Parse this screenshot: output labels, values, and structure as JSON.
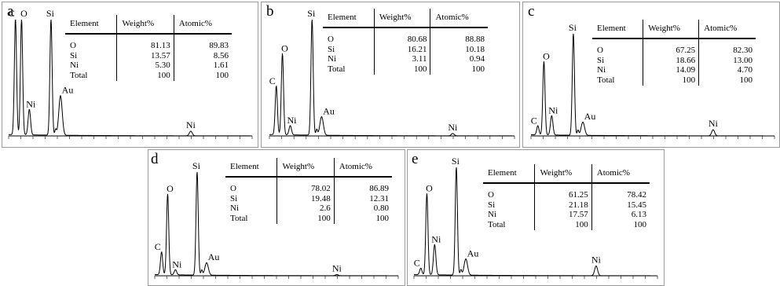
{
  "chart_data": [
    {
      "type": "line",
      "label": "a",
      "x": [
        0.28,
        0.53,
        0.85,
        1.74,
        2.13,
        7.48
      ],
      "y": [
        100,
        100,
        22,
        100,
        34,
        4
      ],
      "peaks": [
        "C",
        "O",
        "Ni",
        "Si",
        "Au",
        "Ni"
      ],
      "table": {
        "headers": [
          "Element",
          "Weight%",
          "Atomic%"
        ],
        "rows": [
          [
            "O",
            "81.13",
            "89.83"
          ],
          [
            "Si",
            "13.57",
            "8.56"
          ],
          [
            "Ni",
            "5.30",
            "1.61"
          ],
          [
            "Total",
            "100",
            "100"
          ]
        ]
      }
    },
    {
      "type": "line",
      "label": "b",
      "x": [
        0.28,
        0.53,
        0.85,
        1.74,
        2.13,
        7.48
      ],
      "y": [
        42,
        70,
        8,
        100,
        16,
        2
      ],
      "peaks": [
        "C",
        "O",
        "Ni",
        "Si",
        "Au",
        "Ni"
      ],
      "table": {
        "headers": [
          "Element",
          "Weight%",
          "Atomic%"
        ],
        "rows": [
          [
            "O",
            "80.68",
            "88.88"
          ],
          [
            "Si",
            "16.21",
            "10.18"
          ],
          [
            "Ni",
            "3.11",
            "0.94"
          ],
          [
            "Total",
            "100",
            "100"
          ]
        ]
      }
    },
    {
      "type": "line",
      "label": "c",
      "x": [
        0.28,
        0.53,
        0.85,
        1.74,
        2.13,
        7.48
      ],
      "y": [
        9,
        72,
        19,
        100,
        13,
        6
      ],
      "peaks": [
        "C",
        "O",
        "Ni",
        "Si",
        "Au",
        "Ni"
      ],
      "table": {
        "headers": [
          "Element",
          "Weight%",
          "Atomic%"
        ],
        "rows": [
          [
            "O",
            "67.25",
            "82.30"
          ],
          [
            "Si",
            "18.66",
            "13.00"
          ],
          [
            "Ni",
            "14.09",
            "4.70"
          ],
          [
            "Total",
            "100",
            "100"
          ]
        ]
      }
    },
    {
      "type": "line",
      "label": "d",
      "x": [
        0.28,
        0.53,
        0.85,
        1.74,
        2.13,
        7.48
      ],
      "y": [
        22,
        78,
        5,
        100,
        12,
        1
      ],
      "peaks": [
        "C",
        "O",
        "Ni",
        "Si",
        "Au",
        "Ni"
      ],
      "table": {
        "headers": [
          "Element",
          "Weight%",
          "Atomic%"
        ],
        "rows": [
          [
            "O",
            "78.02",
            "86.89"
          ],
          [
            "Si",
            "19.48",
            "12.31"
          ],
          [
            "Ni",
            "2.6",
            "0.80"
          ],
          [
            "Total",
            "100",
            "100"
          ]
        ]
      }
    },
    {
      "type": "line",
      "label": "e",
      "x": [
        0.28,
        0.53,
        0.85,
        1.74,
        2.13,
        7.48
      ],
      "y": [
        6,
        75,
        28,
        100,
        15,
        9
      ],
      "peaks": [
        "C",
        "O",
        "Ni",
        "Si",
        "Au",
        "Ni"
      ],
      "table": {
        "headers": [
          "Element",
          "Weight%",
          "Atomic%"
        ],
        "rows": [
          [
            "O",
            "61.25",
            "78.42"
          ],
          [
            "Si",
            "21.18",
            "15.45"
          ],
          [
            "Ni",
            "17.57",
            "6.13"
          ],
          [
            "Total",
            "100",
            "100"
          ]
        ]
      }
    }
  ]
}
